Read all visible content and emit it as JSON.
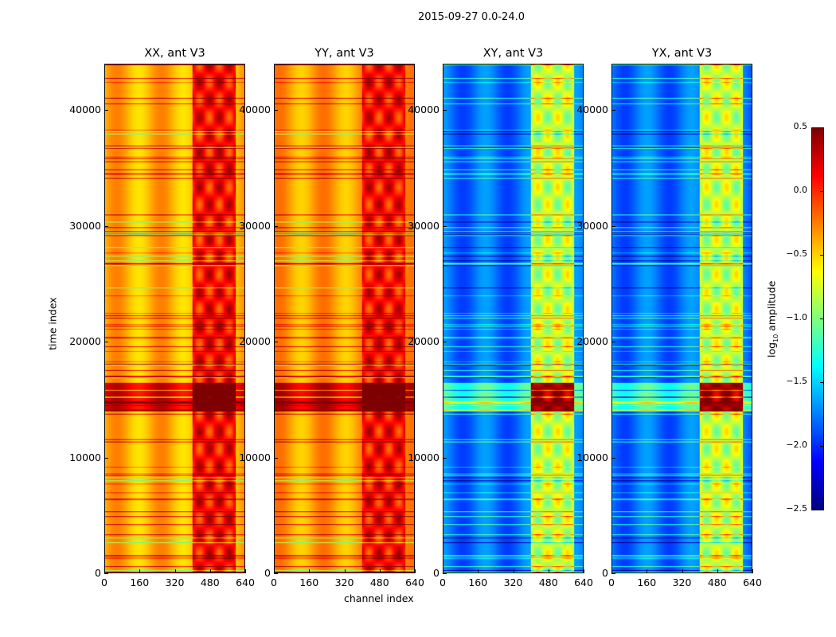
{
  "chart_data": {
    "type": "heatmap",
    "title": "2015-09-27 0.0-24.0",
    "xlabel": "channel index",
    "ylabel": "time index",
    "xlim": [
      0,
      640
    ],
    "ylim": [
      0,
      44000
    ],
    "xticks": [
      "0",
      "160",
      "320",
      "480",
      "640"
    ],
    "yticks": [
      "0",
      "10000",
      "20000",
      "30000",
      "40000"
    ],
    "panels": [
      {
        "title": "XX, ant V3",
        "base_log10_amplitude": -0.4,
        "band_channels": [
          400,
          600
        ],
        "band_log10_amplitude": 0.1
      },
      {
        "title": "YY, ant V3",
        "base_log10_amplitude": -0.35,
        "band_channels": [
          400,
          600
        ],
        "band_log10_amplitude": 0.1
      },
      {
        "title": "XY, ant V3",
        "base_log10_amplitude": -1.8,
        "band_channels": [
          400,
          600
        ],
        "band_log10_amplitude": -0.8
      },
      {
        "title": "YX, ant V3",
        "base_log10_amplitude": -1.8,
        "band_channels": [
          400,
          600
        ],
        "band_log10_amplitude": -0.8
      }
    ],
    "colorbar": {
      "label": "log10 amplitude",
      "label_main": "log",
      "label_sub": "10",
      "label_rest": " amplitude",
      "range": [
        -2.5,
        0.5
      ],
      "colormap": "jet",
      "ticks": [
        "0.5",
        "0.0",
        "−0.5",
        "−1.0",
        "−1.5",
        "−2.0",
        "−2.5"
      ]
    }
  }
}
